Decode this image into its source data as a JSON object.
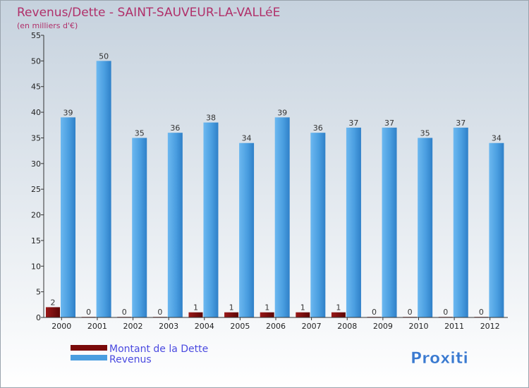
{
  "chart_data": {
    "type": "bar",
    "title": "Revenus/Dette - SAINT-SAUVEUR-LA-VALLéE",
    "subtitle": "(en milliers d'€)",
    "xlabel": "",
    "ylabel": "",
    "categories": [
      "2000",
      "2001",
      "2002",
      "2003",
      "2004",
      "2005",
      "2006",
      "2007",
      "2008",
      "2009",
      "2010",
      "2011",
      "2012"
    ],
    "series": [
      {
        "name": "Montant de la Dette",
        "values": [
          2,
          0,
          0,
          0,
          1,
          1,
          1,
          1,
          1,
          0,
          0,
          0,
          0
        ]
      },
      {
        "name": "Revenus",
        "values": [
          39,
          50,
          35,
          36,
          38,
          34,
          39,
          36,
          37,
          37,
          35,
          37,
          34
        ]
      }
    ],
    "ylim": [
      0,
      55
    ],
    "yticks": [
      0,
      5,
      10,
      15,
      20,
      25,
      30,
      35,
      40,
      45,
      50,
      55
    ],
    "grid": false,
    "legend_position": "bottom-left"
  },
  "logo": {
    "text": "Proxiti"
  },
  "colors": {
    "title": "#b0306a",
    "legend_text": "#4a4ae0",
    "dette": "#7a0a0a",
    "revenus": "#4a9ee0",
    "axis": "#333333",
    "background_top": "#c6d2de",
    "background_bottom": "#ffffff"
  }
}
